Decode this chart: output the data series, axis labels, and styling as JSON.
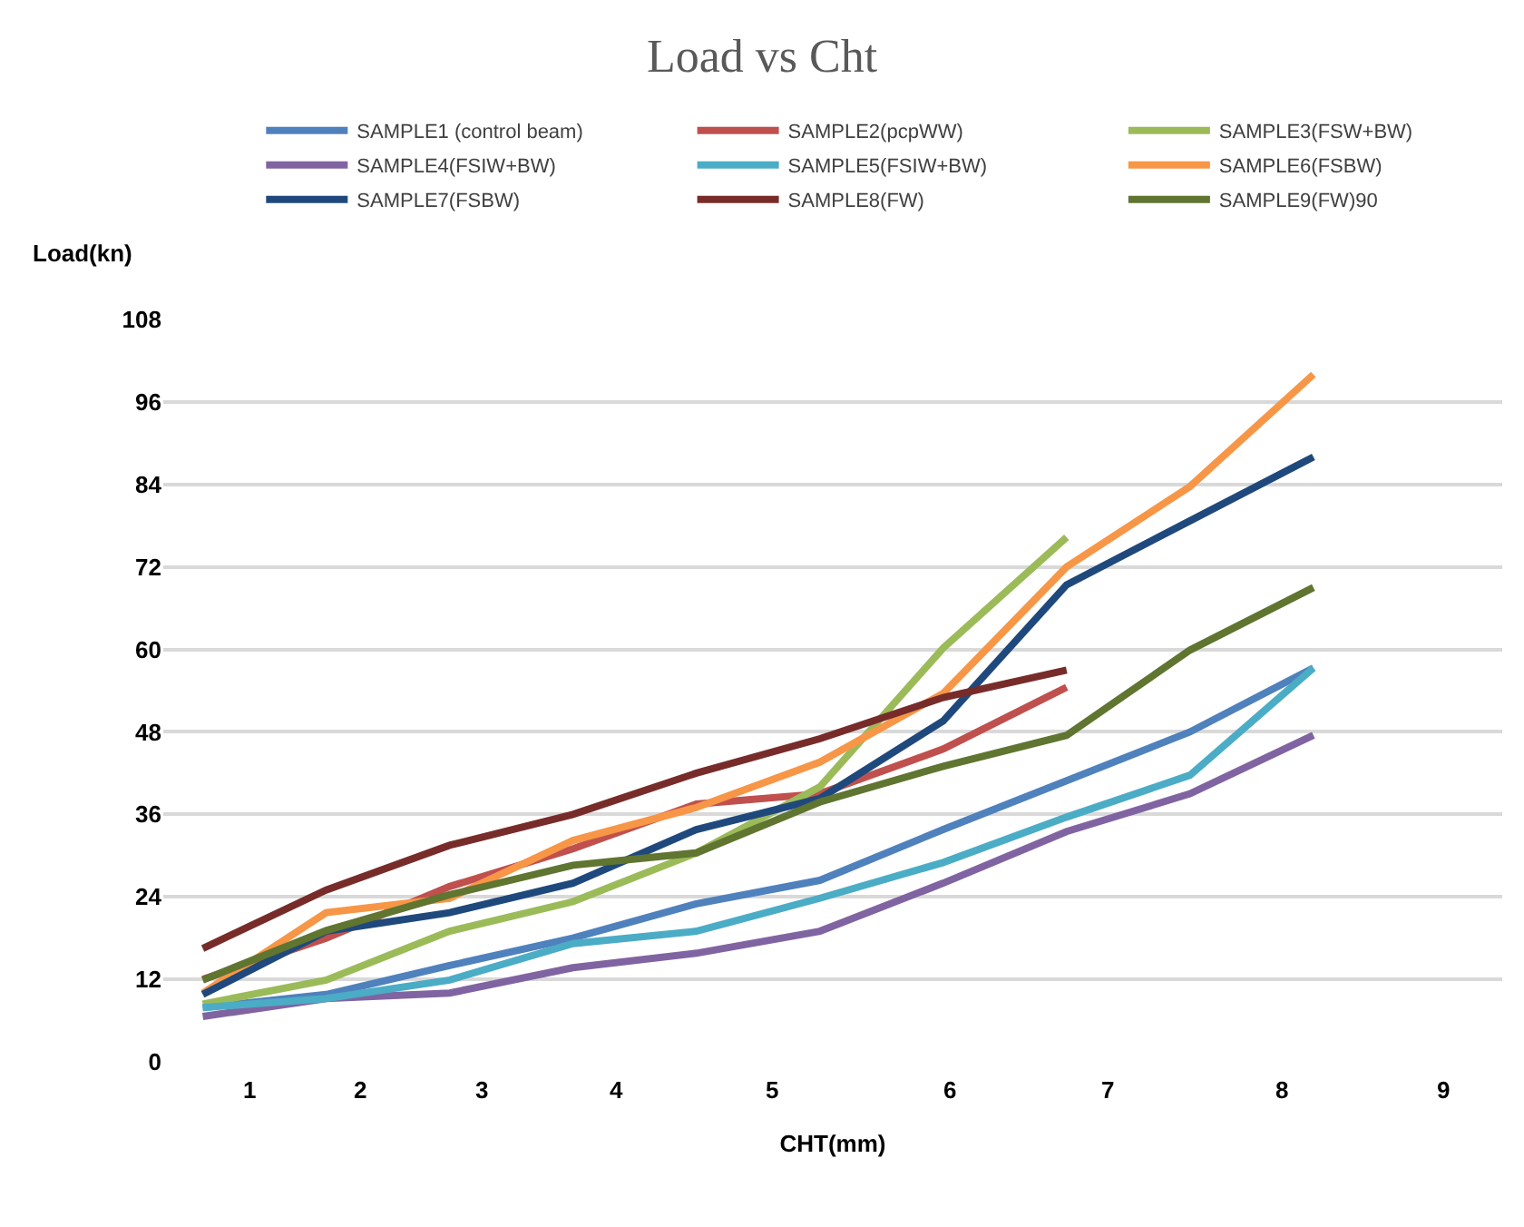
{
  "chart_data": {
    "type": "line",
    "title": "Load vs Cht",
    "xlabel": "CHT(mm)",
    "ylabel": "Load(kn)",
    "categories": [
      null,
      null,
      null,
      null,
      null,
      null,
      null,
      null,
      null,
      null
    ],
    "annotations": [
      "1",
      "2",
      "3",
      "4",
      "5",
      "6",
      "7",
      "8",
      "9"
    ],
    "ylim": [
      0,
      108
    ],
    "yticks": [
      0,
      12,
      24,
      36,
      48,
      60,
      72,
      84,
      96,
      108
    ],
    "grid": "y",
    "legend": "top",
    "marker": "none",
    "line_style": "solid",
    "series": [
      {
        "name": "SAMPLE1 (control beam)",
        "color": "#4f81bd",
        "values": [
          7.9,
          9.8,
          14,
          18,
          23,
          26.4,
          33.8,
          40.9,
          48,
          57.3
        ]
      },
      {
        "name": "SAMPLE2(pcpWW)",
        "color": "#c0504d",
        "values": [
          12,
          18,
          25.5,
          31,
          37.5,
          39,
          45.5,
          54.5,
          null,
          null
        ]
      },
      {
        "name": "SAMPLE3(FSW+BW)",
        "color": "#9bbb59",
        "values": [
          8.4,
          11.9,
          19,
          23.3,
          30.4,
          40,
          60.2,
          76.3,
          null,
          null
        ]
      },
      {
        "name": "SAMPLE4(FSIW+BW)",
        "color": "#8064a2",
        "values": [
          6.6,
          9.2,
          10,
          13.7,
          15.8,
          19,
          26,
          33.5,
          39,
          47.5
        ]
      },
      {
        "name": "SAMPLE5(FSIW+BW)",
        "color": "#4bacc6",
        "values": [
          7.9,
          9.2,
          11.9,
          17.2,
          19,
          23.8,
          29,
          35.6,
          41.7,
          57.3
        ]
      },
      {
        "name": "SAMPLE6(FSBW)",
        "color": "#f79646",
        "values": [
          10,
          21.7,
          23.8,
          32.2,
          37,
          43.6,
          53.6,
          72,
          83.7,
          100
        ]
      },
      {
        "name": "SAMPLE7(FSBW)",
        "color": "#1f497d",
        "values": [
          9.8,
          19,
          21.7,
          26,
          33.8,
          38.3,
          49.6,
          69.4,
          78.7,
          88
        ]
      },
      {
        "name": "SAMPLE8(FW)",
        "color": "#772c2a",
        "values": [
          16.5,
          25,
          31.5,
          36,
          42,
          47,
          53,
          57,
          null,
          null
        ]
      },
      {
        "name": "SAMPLE9(FW)90",
        "color": "#5f7530",
        "values": [
          11.9,
          19.1,
          24.3,
          28.6,
          30.4,
          37.8,
          43,
          47.5,
          59.9,
          69
        ]
      }
    ]
  }
}
